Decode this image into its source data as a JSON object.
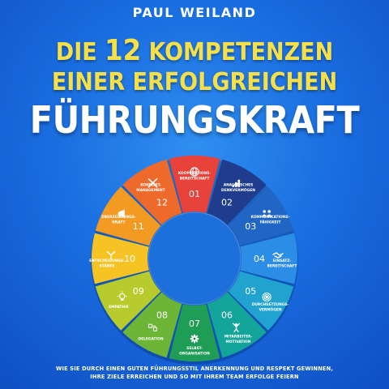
{
  "author": "PAUL WEILAND",
  "title": {
    "line1_prefix": "DIE ",
    "line1_number": "12",
    "line1_suffix": " KOMPETENZEN",
    "line2": "EINER ERFOLGREICHEN",
    "line3": "FÜHRUNGSKRAFT"
  },
  "tagline": {
    "line1": "WIE SIE DURCH EINEN GUTEN FÜHRUNGSSTIL ANERKENNUNG UND RESPEKT GEWINNEN,",
    "line2": "IHRE ZIELE ERREICHEN UND SO MIT IHREM TEAM ERFOLGE FEIERN"
  },
  "wheel": {
    "segments": [
      {
        "number": "01",
        "label": [
          "KOOPERATIONS-",
          "BEREITSCHAFT"
        ],
        "color": "#e8433a",
        "icon": "globe-icon"
      },
      {
        "number": "02",
        "label": [
          "ANALYTISCHES",
          "DENKVERMÖGEN"
        ],
        "color": "#1f3d8c",
        "icon": "bar-chart-icon"
      },
      {
        "number": "03",
        "label": [
          "KOMMUNIKATIONS-",
          "FÄHIGKEIT"
        ],
        "color": "#2166c4",
        "icon": "people-icon"
      },
      {
        "number": "04",
        "label": [
          "EINSATZ-",
          "BEREITSCHAFT"
        ],
        "color": "#2c8de6",
        "icon": "handshake-icon"
      },
      {
        "number": "05",
        "label": [
          "DURCHSETZUNGS-",
          "VERMÖGEN"
        ],
        "color": "#21a3cf",
        "icon": "target-icon"
      },
      {
        "number": "06",
        "label": [
          "MITARBEITER-",
          "MOTIVATION"
        ],
        "color": "#14a59a",
        "icon": "person-cheer-icon"
      },
      {
        "number": "07",
        "label": [
          "SELBST-",
          "ORGANISATION"
        ],
        "color": "#1f9d57",
        "icon": "gear-icon"
      },
      {
        "number": "08",
        "label": [
          "DELEGATION"
        ],
        "color": "#6cb536",
        "icon": "delegate-icon"
      },
      {
        "number": "09",
        "label": [
          "EMPATHIE"
        ],
        "color": "#b7cc2c",
        "icon": "lightbulb-icon"
      },
      {
        "number": "10",
        "label": [
          "ENTSCHEIDUNGS-",
          "STÄRKE"
        ],
        "color": "#f5c323",
        "icon": "decision-icon"
      },
      {
        "number": "11",
        "label": [
          "ÜBERZEUGUNGS-",
          "KRAFT"
        ],
        "color": "#f39a22",
        "icon": "megaphone-icon"
      },
      {
        "number": "12",
        "label": [
          "KONFLIKT-",
          "MANAGEMENT"
        ],
        "color": "#ee6a2b",
        "icon": "conflict-icon"
      }
    ]
  },
  "colors": {
    "title_yellow": "#f5e04a",
    "background": "#1a6ee0",
    "ring_inner": "#ffffff"
  }
}
